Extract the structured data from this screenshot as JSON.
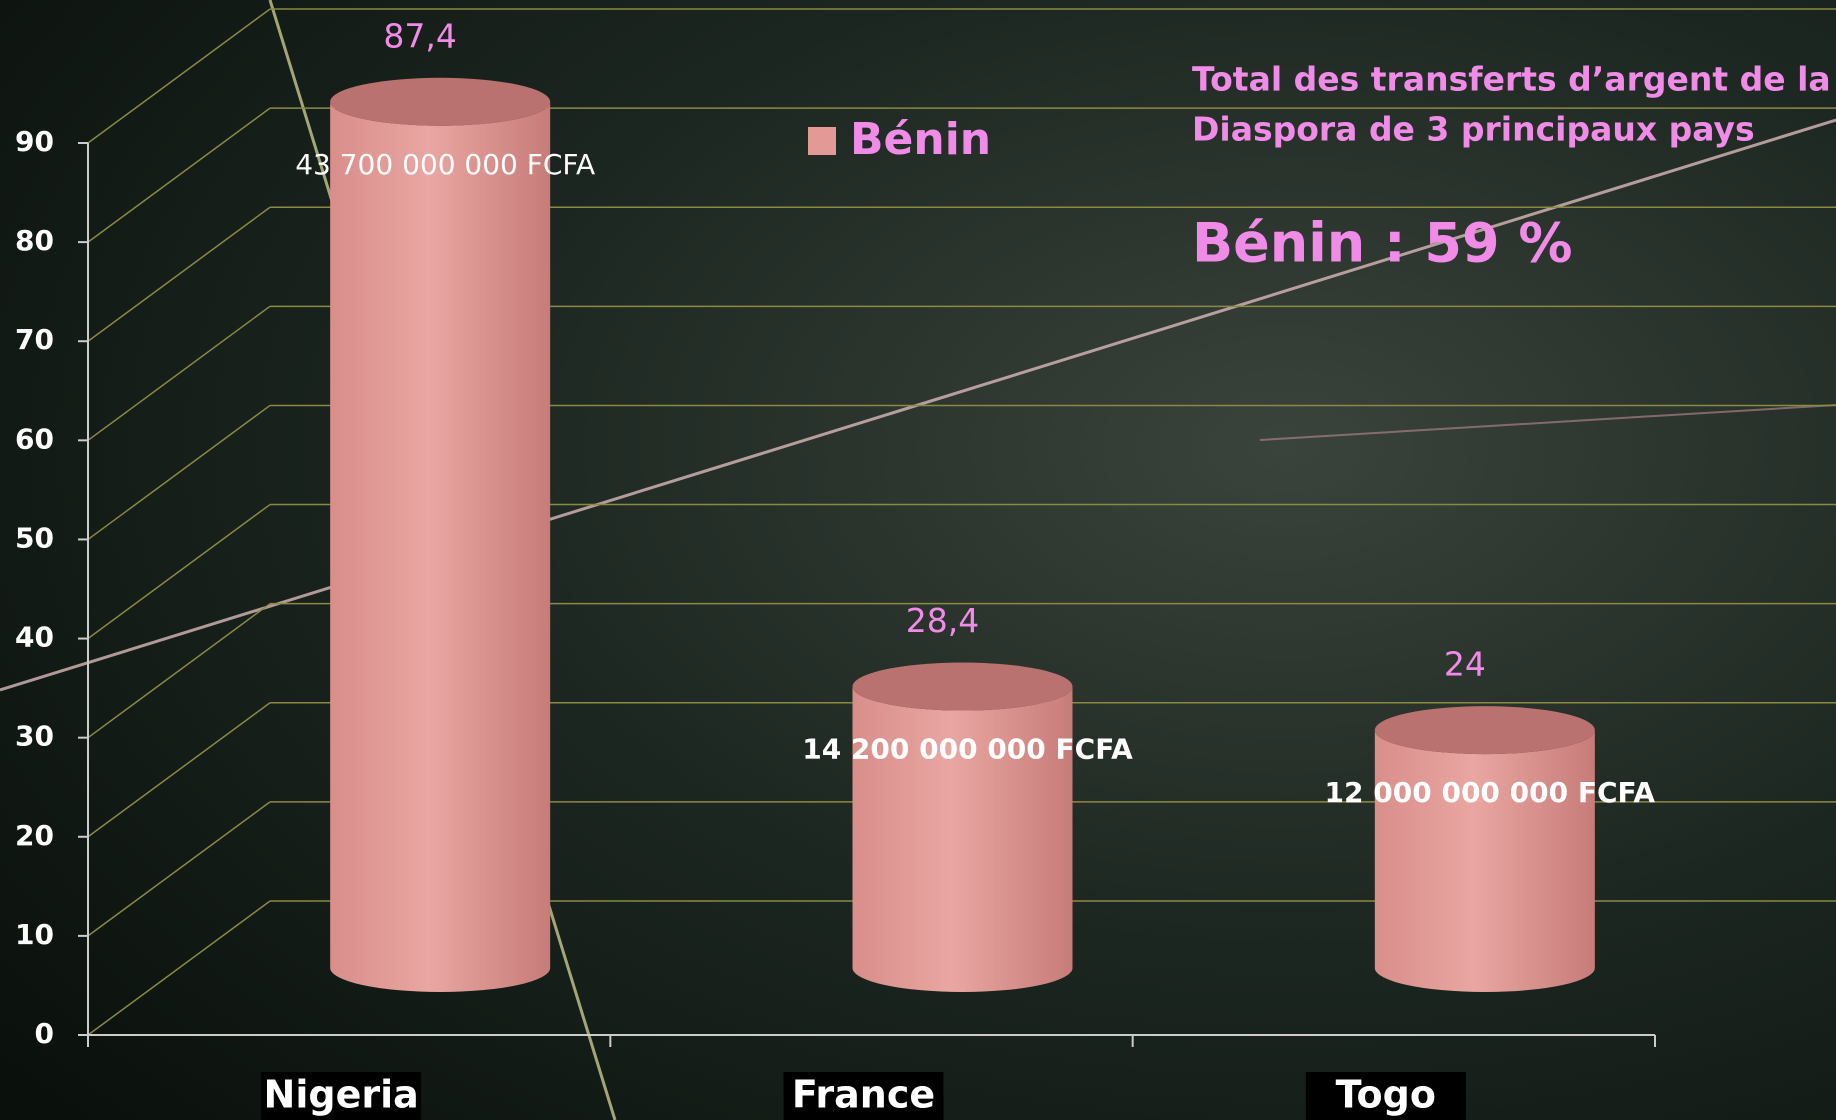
{
  "chart_data": {
    "type": "bar3d",
    "categories": [
      "Nigeria",
      "France",
      "Togo"
    ],
    "series": [
      {
        "name": "Bénin",
        "color": "#e39a96",
        "values": [
          87.4,
          28.4,
          24
        ],
        "value_labels": [
          "87,4",
          "28,4",
          "24"
        ]
      }
    ],
    "bar_labels": [
      "43 700 000 000 FCFA",
      "14 200 000 000 FCFA",
      "12 000 000 000 FCFA"
    ],
    "ylim": [
      0,
      90
    ],
    "yticks": [
      0,
      10,
      20,
      30,
      40,
      50,
      60,
      70,
      80,
      90
    ],
    "grid": true,
    "legend": "top",
    "annotation_lines": [
      "Total des transferts d’argent de la",
      "Diaspora de 3 principaux pays"
    ],
    "highlight": "Bénin : 59 %"
  }
}
